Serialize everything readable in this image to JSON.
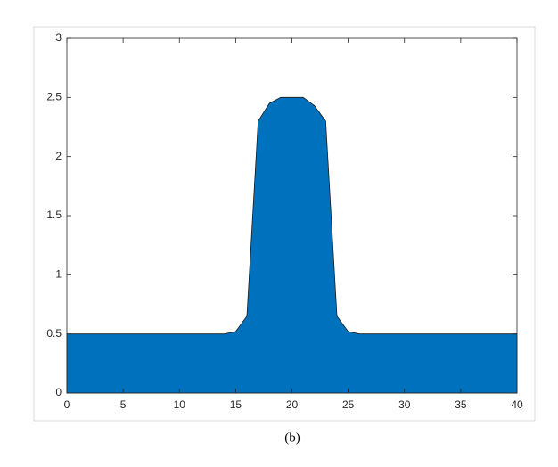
{
  "chart_data": {
    "type": "area",
    "caption": "(b)",
    "x": [
      0,
      14,
      15,
      16,
      17,
      18,
      19,
      20,
      21,
      22,
      23,
      24,
      25,
      26,
      40
    ],
    "values": [
      0.5,
      0.5,
      0.52,
      0.65,
      2.3,
      2.45,
      2.5,
      2.5,
      2.5,
      2.43,
      2.3,
      0.65,
      0.52,
      0.5,
      0.5
    ],
    "color": "#0072bd",
    "xlim": [
      0,
      40
    ],
    "xticks": [
      0,
      5,
      10,
      15,
      20,
      25,
      30,
      35,
      40
    ],
    "ylim": [
      0,
      3
    ],
    "yticks": [
      0,
      0.5,
      1,
      1.5,
      2,
      2.5,
      3
    ],
    "grid": false
  }
}
